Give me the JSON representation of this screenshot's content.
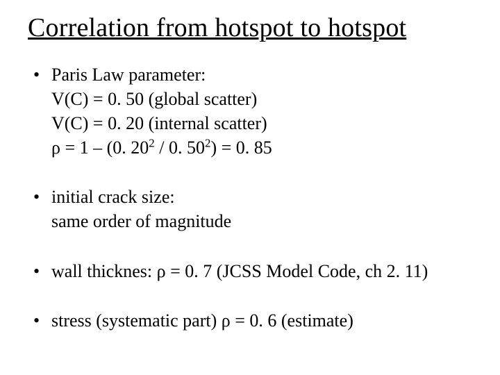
{
  "title": "Correlation from hotspot to hotspot",
  "bullets": [
    {
      "lines": [
        "Paris Law parameter:",
        "V(C) = 0. 50 (global scatter)",
        "V(C) = 0. 20 (internal scatter)",
        "ρ = 1 – (0. 20² / 0. 50²) = 0. 85"
      ]
    },
    {
      "lines": [
        "initial crack size:",
        "same order of magnitude"
      ]
    },
    {
      "lines": [
        "wall thicknes: ρ = 0. 7 (JCSS Model Code, ch 2. 11)"
      ]
    },
    {
      "lines": [
        "stress (systematic part) ρ = 0. 6 (estimate)"
      ]
    }
  ],
  "style": {
    "background_color": "#ffffff",
    "text_color": "#000000",
    "title_fontsize": 38,
    "body_fontsize": 26,
    "font_family": "Times New Roman"
  }
}
